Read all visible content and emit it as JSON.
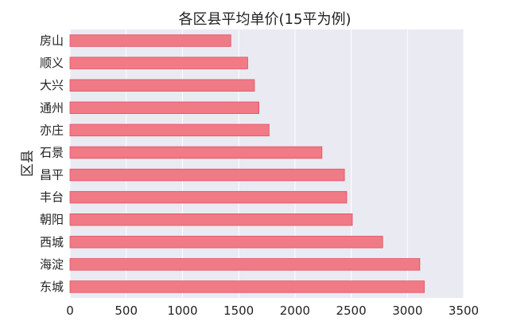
{
  "chart_data": {
    "type": "bar",
    "orientation": "horizontal",
    "title": "各区县平均单价(15平为例)",
    "ylabel": "区县",
    "xlabel": "",
    "categories": [
      "房山",
      "顺义",
      "大兴",
      "通州",
      "亦庄",
      "石景",
      "昌平",
      "丰台",
      "朝阳",
      "西城",
      "海淀",
      "东城"
    ],
    "values": [
      1430,
      1580,
      1640,
      1680,
      1770,
      2240,
      2440,
      2460,
      2510,
      2780,
      3110,
      3150
    ],
    "xlim": [
      0,
      3500
    ],
    "xticks": [
      "0",
      "500",
      "1000",
      "1500",
      "2000",
      "2500",
      "3000",
      "3500"
    ],
    "grid": true,
    "colors": {
      "bar": "#f07a86",
      "bar_edge": "#e0505e",
      "plot_bg": "#eaeaf2",
      "grid": "#ffffff"
    }
  }
}
